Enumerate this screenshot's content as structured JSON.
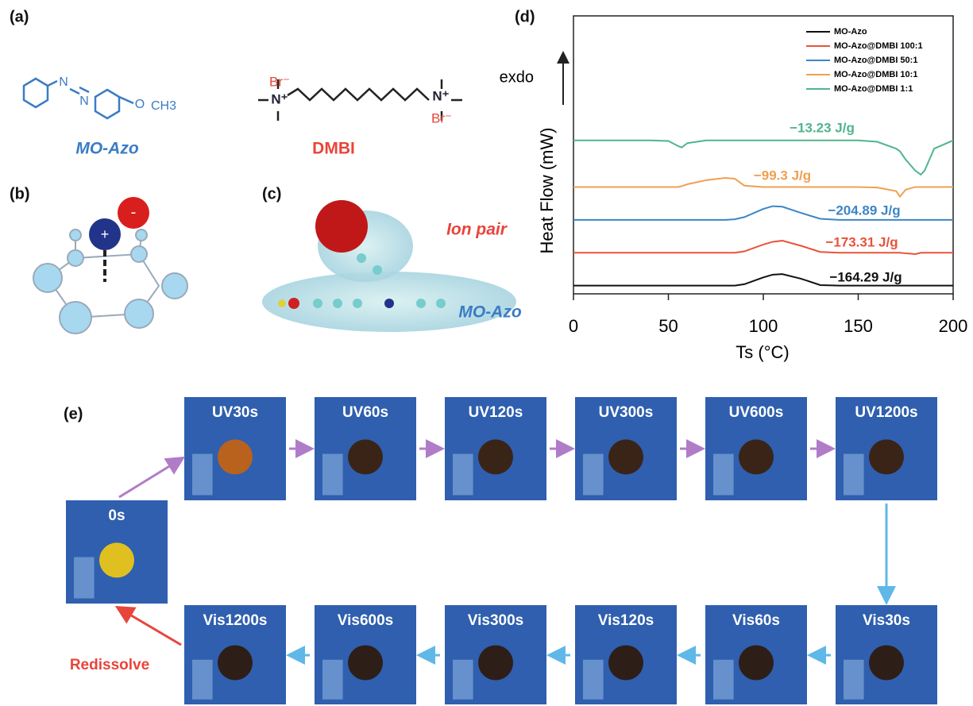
{
  "panel_a": {
    "label": "(a)",
    "mo_azo": {
      "name": "MO-Azo",
      "atoms": [
        "N",
        "N",
        "O",
        "CH3"
      ]
    },
    "dmbi": {
      "name": "DMBI",
      "atoms": [
        "Br⁻",
        "N⁺",
        "N⁺",
        "Br⁻"
      ]
    }
  },
  "panel_b": {
    "label": "(b)",
    "ions": [
      "+",
      "-"
    ]
  },
  "panel_c": {
    "label": "(c)",
    "ion_pair": "Ion pair",
    "molecule": "MO-Azo"
  },
  "chart_data": {
    "type": "line",
    "panel_label": "(d)",
    "xlabel": "Ts (°C)",
    "ylabel": "Heat Flow (mW)",
    "direction_label": "exdo",
    "x": [
      0,
      20,
      40,
      50,
      55,
      57,
      60,
      70,
      80,
      85,
      90,
      100,
      105,
      110,
      120,
      130,
      140,
      150,
      160,
      170,
      172,
      175,
      180,
      183,
      185,
      190,
      200
    ],
    "xlim": [
      0,
      200
    ],
    "xticks": [
      0,
      50,
      100,
      150,
      200
    ],
    "ylim": [
      0,
      100
    ],
    "series": [
      {
        "name": "MO-Azo",
        "color": "#111111",
        "annotation": "−164.29 J/g",
        "values": [
          3,
          3,
          3,
          3,
          3,
          3,
          3,
          3,
          3,
          3,
          3.5,
          6,
          7,
          7.2,
          5.5,
          3.2,
          3,
          3,
          3,
          3,
          3,
          3,
          3,
          3,
          3,
          3,
          3
        ]
      },
      {
        "name": "MO-Azo@DMBI 100:1",
        "color": "#e8533a",
        "annotation": "−173.31 J/g",
        "values": [
          15,
          15,
          15,
          15,
          15,
          15,
          15,
          15,
          15,
          15,
          15.5,
          18,
          19,
          19.4,
          17.5,
          15.3,
          15,
          15,
          15,
          15,
          15,
          14.8,
          14.5,
          15,
          15,
          15,
          15
        ]
      },
      {
        "name": "MO-Azo@DMBI 50:1",
        "color": "#3d85c6",
        "annotation": "−204.89 J/g",
        "values": [
          27,
          27,
          27,
          27,
          27,
          27,
          27,
          27,
          27,
          27.2,
          28,
          31,
          32,
          31.8,
          29.5,
          27.4,
          27,
          27,
          27,
          27,
          27,
          27,
          27,
          27,
          27,
          27,
          27
        ]
      },
      {
        "name": "MO-Azo@DMBI 10:1",
        "color": "#f0a050",
        "annotation": "−99.3 J/g",
        "values": [
          39,
          39,
          39,
          39,
          39,
          39.3,
          40,
          41.5,
          42.3,
          42,
          39.5,
          39,
          39,
          39,
          39,
          39,
          39,
          39,
          38.8,
          37.5,
          35.5,
          38,
          39,
          39,
          39,
          39,
          39
        ]
      },
      {
        "name": "MO-Azo@DMBI 1:1",
        "color": "#4fb58d",
        "annotation": "−13.23 J/g",
        "values": [
          56,
          56,
          56,
          55.8,
          54,
          53.4,
          55,
          56,
          56,
          56,
          56,
          56,
          56,
          56,
          56,
          56,
          56,
          56,
          55.5,
          53,
          52,
          49,
          45,
          43.5,
          45,
          53,
          56
        ]
      }
    ]
  },
  "panel_e": {
    "label": "(e)",
    "start": "0s",
    "uv_frames": [
      "UV30s",
      "UV60s",
      "UV120s",
      "UV300s",
      "UV600s",
      "UV1200s"
    ],
    "vis_frames": [
      "Vis30s",
      "Vis60s",
      "Vis120s",
      "Vis300s",
      "Vis600s",
      "Vis1200s"
    ],
    "return_label": "Redissolve"
  }
}
